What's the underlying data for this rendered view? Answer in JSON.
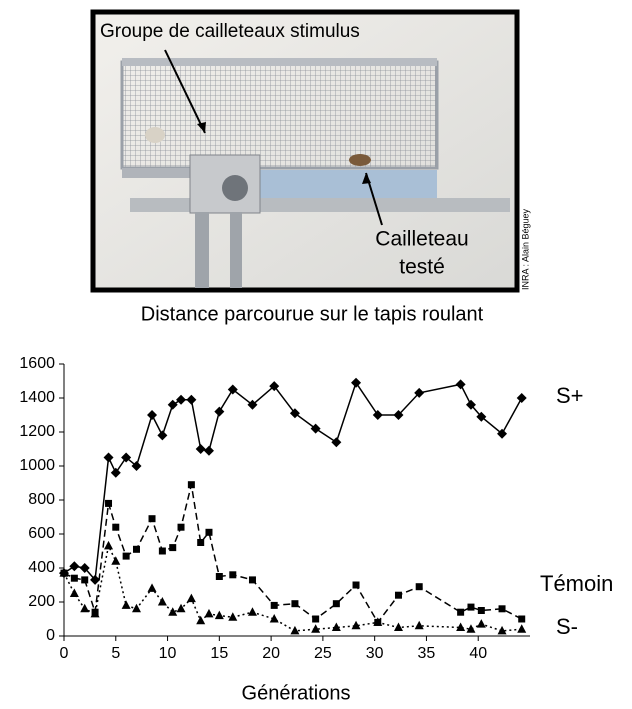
{
  "photo": {
    "label_top": "Groupe de cailleteaux stimulus",
    "label_bottom": [
      "Cailleteau",
      "testé"
    ],
    "credit": "INRA : Alain Béguey"
  },
  "caption": "Distance parcourue sur le tapis roulant",
  "chart_data": {
    "type": "line",
    "x_label": "Générations",
    "x": [
      0,
      1,
      2,
      3,
      4.3,
      5,
      6,
      7,
      8.5,
      9.5,
      10.5,
      11.3,
      12.3,
      13.2,
      14,
      15,
      16.3,
      18.2,
      20.3,
      22.3,
      24.3,
      26.3,
      28.2,
      30.3,
      32.3,
      34.3,
      38.3,
      39.3,
      40.3,
      42.3,
      44.2
    ],
    "series": [
      {
        "name": "S+",
        "color": "#000000",
        "line_style": "solid",
        "marker": "diamond",
        "values": [
          370,
          410,
          400,
          330,
          1050,
          960,
          1050,
          1000,
          1300,
          1180,
          1360,
          1390,
          1390,
          1100,
          1090,
          1320,
          1450,
          1360,
          1470,
          1310,
          1220,
          1140,
          1490,
          1300,
          1300,
          1430,
          1480,
          1360,
          1290,
          1190,
          1400
        ]
      },
      {
        "name": "Témoin",
        "color": "#000000",
        "line_style": "dashed",
        "marker": "square",
        "values": [
          370,
          340,
          330,
          140,
          780,
          640,
          470,
          510,
          690,
          500,
          520,
          640,
          890,
          550,
          610,
          350,
          360,
          330,
          180,
          190,
          100,
          190,
          300,
          80,
          240,
          290,
          140,
          170,
          150,
          160,
          100
        ]
      },
      {
        "name": "S-",
        "color": "#000000",
        "line_style": "dotted",
        "marker": "triangle",
        "values": [
          370,
          250,
          160,
          130,
          530,
          440,
          180,
          160,
          280,
          200,
          140,
          160,
          220,
          90,
          130,
          120,
          110,
          140,
          100,
          30,
          40,
          50,
          60,
          80,
          50,
          60,
          50,
          40,
          70,
          30,
          40
        ]
      }
    ],
    "xlim": [
      0,
      45
    ],
    "xticks": [
      0,
      5,
      10,
      15,
      20,
      25,
      30,
      35,
      40
    ],
    "ylim": [
      0,
      1600
    ],
    "yticks": [
      0,
      200,
      400,
      600,
      800,
      1000,
      1200,
      1400,
      1600
    ],
    "grid": false
  }
}
